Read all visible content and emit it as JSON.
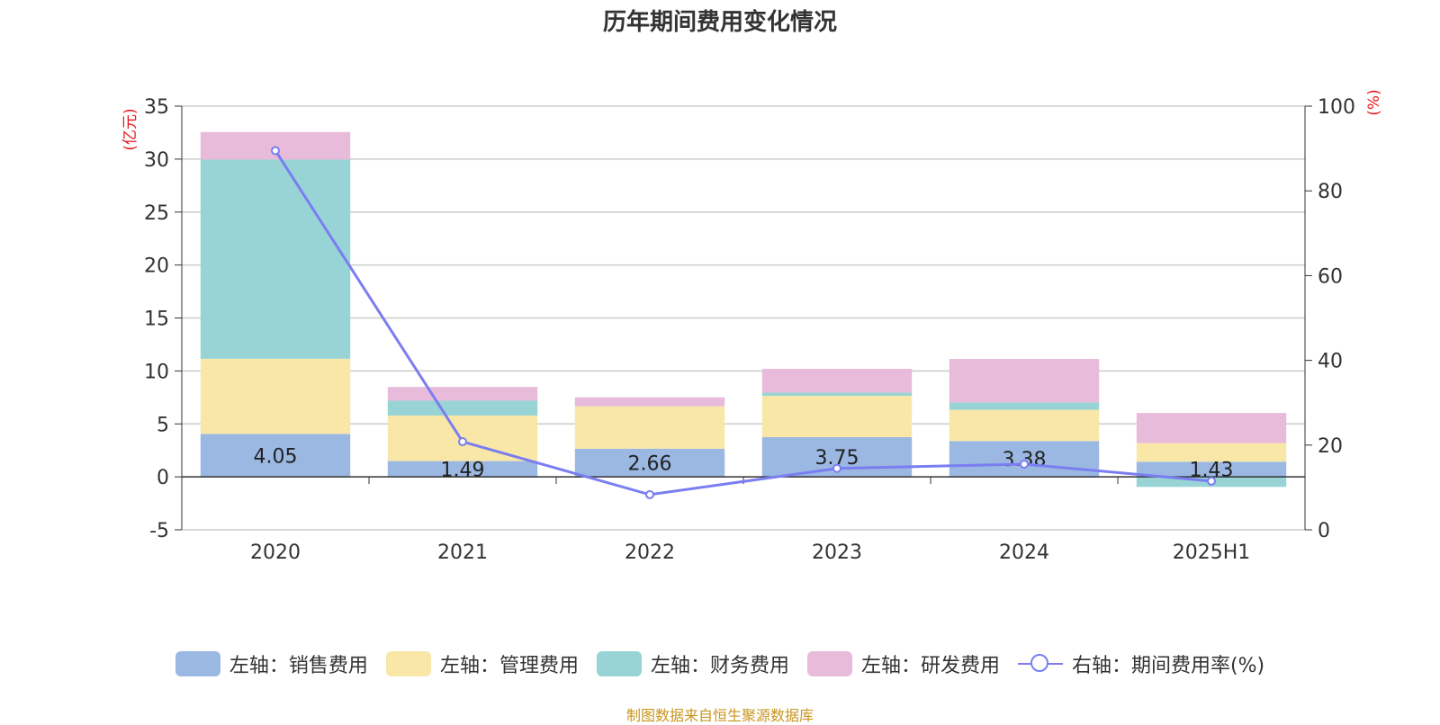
{
  "chart_data": {
    "type": "bar",
    "title": "历年期间费用变化情况",
    "categories": [
      "2020",
      "2021",
      "2022",
      "2023",
      "2024",
      "2025H1"
    ],
    "y_left": {
      "unit_label": "(亿元)",
      "range": [
        -5,
        35
      ],
      "ticks": [
        "-5",
        "0",
        "5",
        "10",
        "15",
        "20",
        "25",
        "30",
        "35"
      ]
    },
    "y_right": {
      "unit_label": "(%)",
      "range": [
        0,
        100
      ],
      "ticks": [
        "0",
        "20",
        "40",
        "60",
        "80",
        "100"
      ]
    },
    "series": [
      {
        "name": "左轴：销售费用",
        "axis": "left",
        "stacked": true,
        "color": "#9bb8e3",
        "values": [
          4.05,
          1.49,
          2.66,
          3.75,
          3.38,
          1.43
        ]
      },
      {
        "name": "左轴：管理费用",
        "axis": "left",
        "stacked": true,
        "color": "#f9e7a7",
        "values": [
          7.1,
          4.3,
          4.0,
          3.9,
          2.95,
          1.75
        ]
      },
      {
        "name": "左轴：财务费用",
        "axis": "left",
        "stacked": true,
        "color": "#98d4d5",
        "values": [
          18.8,
          1.4,
          0.0,
          0.3,
          0.7,
          -0.95
        ]
      },
      {
        "name": "左轴：研发费用",
        "axis": "left",
        "stacked": true,
        "color": "#e8bbdb",
        "values": [
          2.6,
          1.3,
          0.85,
          2.25,
          4.1,
          2.85
        ]
      },
      {
        "name": "右轴：期间费用率(%)",
        "axis": "right",
        "type": "line",
        "color": "#7a7ef0",
        "values": [
          89.5,
          20.8,
          8.3,
          14.5,
          15.5,
          11.5
        ]
      }
    ],
    "data_labels": [
      "4.05",
      "1.49",
      "2.66",
      "3.75",
      "3.38",
      "1.43"
    ],
    "grid": true,
    "legend_position": "bottom"
  },
  "source_note": "制图数据来自恒生聚源数据库"
}
